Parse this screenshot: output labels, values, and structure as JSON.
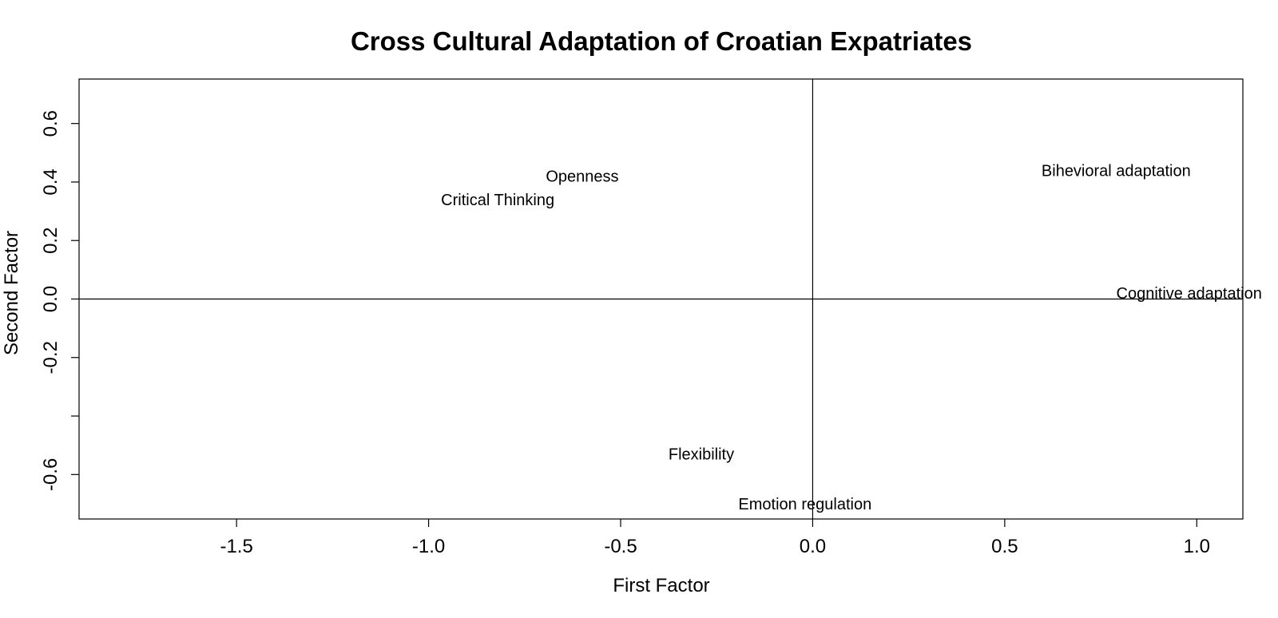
{
  "chart_data": {
    "type": "scatter",
    "title": "Cross Cultural Adaptation of Croatian Expatriates",
    "xlabel": "First Factor",
    "ylabel": "Second Factor",
    "xlim": [
      -1.91,
      1.12
    ],
    "ylim": [
      -0.752,
      0.752
    ],
    "x_ticks": [
      {
        "value": -1.5,
        "label": "-1.5"
      },
      {
        "value": -1.0,
        "label": "-1.0"
      },
      {
        "value": -0.5,
        "label": "-0.5"
      },
      {
        "value": 0.0,
        "label": "0.0"
      },
      {
        "value": 0.5,
        "label": "0.5"
      },
      {
        "value": 1.0,
        "label": "1.0"
      }
    ],
    "y_ticks": [
      {
        "value": 0.6,
        "label": "0.6"
      },
      {
        "value": 0.4,
        "label": "0.4"
      },
      {
        "value": 0.2,
        "label": "0.2"
      },
      {
        "value": 0.0,
        "label": "0.0"
      },
      {
        "value": -0.2,
        "label": "-0.2"
      },
      {
        "value": -0.4,
        "label": ""
      },
      {
        "value": -0.6,
        "label": "-0.6"
      }
    ],
    "reference_lines": {
      "x": 0,
      "y": 0
    },
    "grid": false,
    "points": [
      {
        "label": "Openness",
        "x": -0.6,
        "y": 0.42
      },
      {
        "label": "Critical Thinking",
        "x": -0.82,
        "y": 0.34
      },
      {
        "label": "Bihevioral adaptation",
        "x": 0.79,
        "y": 0.44
      },
      {
        "label": "Cognitive adaptation",
        "x": 0.98,
        "y": 0.02
      },
      {
        "label": "Flexibility",
        "x": -0.29,
        "y": -0.53
      },
      {
        "label": "Emotion regulation",
        "x": -0.02,
        "y": -0.7
      }
    ]
  }
}
